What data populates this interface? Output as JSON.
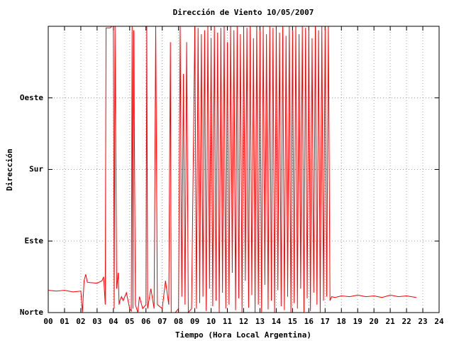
{
  "chart_data": {
    "type": "line",
    "title": "Dirección de Viento 10/05/2007",
    "xlabel": "Tiempo (Hora Local Argentina)",
    "ylabel": "Dirección",
    "xlim": [
      0,
      24
    ],
    "ylim": [
      0,
      360
    ],
    "xticks": [
      {
        "value": 0,
        "label": "00"
      },
      {
        "value": 1,
        "label": "01"
      },
      {
        "value": 2,
        "label": "02"
      },
      {
        "value": 3,
        "label": "03"
      },
      {
        "value": 4,
        "label": "04"
      },
      {
        "value": 5,
        "label": "05"
      },
      {
        "value": 6,
        "label": "06"
      },
      {
        "value": 7,
        "label": "07"
      },
      {
        "value": 8,
        "label": "08"
      },
      {
        "value": 9,
        "label": "09"
      },
      {
        "value": 10,
        "label": "10"
      },
      {
        "value": 11,
        "label": "11"
      },
      {
        "value": 12,
        "label": "12"
      },
      {
        "value": 13,
        "label": "13"
      },
      {
        "value": 14,
        "label": "14"
      },
      {
        "value": 15,
        "label": "15"
      },
      {
        "value": 16,
        "label": "16"
      },
      {
        "value": 17,
        "label": "17"
      },
      {
        "value": 18,
        "label": "18"
      },
      {
        "value": 19,
        "label": "19"
      },
      {
        "value": 20,
        "label": "20"
      },
      {
        "value": 21,
        "label": "21"
      },
      {
        "value": 22,
        "label": "22"
      },
      {
        "value": 23,
        "label": "23"
      },
      {
        "value": 24,
        "label": "24"
      }
    ],
    "yticks": [
      {
        "value": 0,
        "label": "Norte"
      },
      {
        "value": 90,
        "label": "Este"
      },
      {
        "value": 180,
        "label": "Sur"
      },
      {
        "value": 270,
        "label": "Oeste"
      }
    ],
    "grid": true,
    "color": "#ff0000",
    "x": [
      0,
      0.5,
      1,
      1.5,
      2,
      2.1,
      2.2,
      2.3,
      2.4,
      3,
      3.3,
      3.4,
      3.5,
      3.55,
      3.8,
      3.9,
      4,
      4.05,
      4.1,
      4.2,
      4.3,
      4.35,
      4.4,
      4.5,
      4.6,
      4.7,
      4.8,
      5,
      5.1,
      5.15,
      5.2,
      5.25,
      5.35,
      5.5,
      5.6,
      5.8,
      6,
      6.05,
      6.1,
      6.3,
      6.5,
      6.6,
      6.7,
      7,
      7.2,
      7.4,
      7.5,
      7.55,
      7.8,
      8,
      8.1,
      8.2,
      8.3,
      8.4,
      8.5,
      8.6,
      8.8,
      9,
      9.1,
      9.2,
      9.3,
      9.4,
      9.5,
      9.6,
      9.7,
      9.8,
      9.9,
      10,
      10.1,
      10.2,
      10.3,
      10.4,
      10.5,
      10.6,
      10.7,
      10.8,
      10.9,
      11,
      11.1,
      11.2,
      11.3,
      11.4,
      11.5,
      11.6,
      11.7,
      11.8,
      11.9,
      12,
      12.1,
      12.2,
      12.3,
      12.4,
      12.5,
      12.6,
      12.7,
      12.8,
      12.9,
      13,
      13.1,
      13.2,
      13.3,
      13.4,
      13.5,
      13.6,
      13.7,
      13.8,
      13.9,
      14,
      14.1,
      14.2,
      14.3,
      14.4,
      14.5,
      14.6,
      14.7,
      14.8,
      14.9,
      15,
      15.1,
      15.2,
      15.3,
      15.4,
      15.5,
      15.6,
      15.7,
      15.8,
      15.9,
      16,
      16.1,
      16.2,
      16.3,
      16.4,
      16.5,
      16.6,
      16.7,
      16.8,
      16.9,
      17,
      17.1,
      17.2,
      17.3,
      17.4,
      17.6,
      18,
      18.5,
      19,
      19.5,
      20,
      20.5,
      21,
      21.5,
      22,
      22.6
    ],
    "values": [
      28,
      27,
      28,
      26,
      27,
      0,
      40,
      48,
      38,
      37,
      40,
      45,
      10,
      358,
      358,
      360,
      360,
      5,
      360,
      30,
      50,
      10,
      15,
      20,
      15,
      20,
      25,
      5,
      2,
      360,
      5,
      355,
      10,
      0,
      20,
      5,
      10,
      360,
      5,
      30,
      5,
      360,
      10,
      5,
      40,
      10,
      340,
      0,
      0,
      5,
      360,
      20,
      300,
      10,
      340,
      0,
      5,
      360,
      5,
      358,
      12,
      350,
      20,
      355,
      2,
      360,
      30,
      345,
      8,
      360,
      15,
      352,
      0,
      358,
      25,
      360,
      5,
      340,
      10,
      360,
      50,
      355,
      3,
      360,
      18,
      350,
      0,
      360,
      40,
      358,
      6,
      360,
      22,
      345,
      0,
      360,
      10,
      355,
      0,
      360,
      35,
      350,
      4,
      360,
      15,
      358,
      0,
      360,
      28,
      352,
      8,
      360,
      3,
      348,
      20,
      360,
      0,
      355,
      12,
      360,
      5,
      350,
      30,
      360,
      0,
      358,
      18,
      360,
      2,
      345,
      25,
      360,
      10,
      355,
      0,
      360,
      15,
      358,
      20,
      360,
      15,
      20,
      19,
      21,
      20,
      22,
      20,
      21,
      19,
      22,
      20,
      21,
      19
    ]
  }
}
